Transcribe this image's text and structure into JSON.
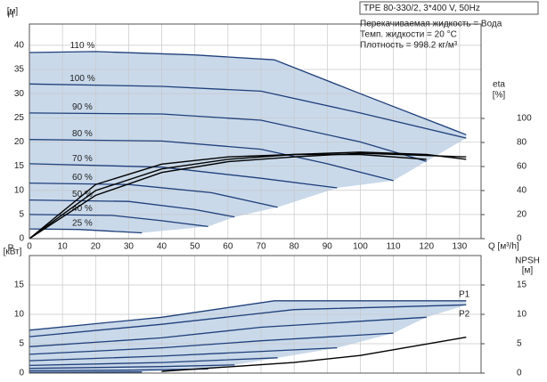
{
  "chart_data": [
    {
      "type": "line",
      "title": "TPE 80-330/2, 3*400 V, 50Hz",
      "info": [
        "Перекачиваемая жидкость = Вода",
        "Темп. жидкости = 20 °C",
        "Плотность = 998.2 кг/м³"
      ],
      "y_label": "H",
      "y_unit": "[м]",
      "y2_label": "eta",
      "y2_unit": "[%]",
      "x_label": "Q [м³/h]",
      "xlim": [
        0,
        136.5
      ],
      "xticks": [
        0,
        10,
        20,
        30,
        40,
        50,
        60,
        70,
        80,
        90,
        100,
        110,
        120,
        130
      ],
      "ylim": [
        0,
        44.4
      ],
      "yticks": [
        0,
        5,
        10,
        15,
        20,
        25,
        30,
        35,
        40
      ],
      "y2lim": [
        0,
        178.5
      ],
      "y2ticks": [
        0,
        20,
        40,
        60,
        80,
        100
      ],
      "grid": true,
      "area_color": "#c9d9ea",
      "series": [
        {
          "name": "110 %",
          "color": "#1f3f7a",
          "x": [
            0,
            20,
            50,
            74,
            100,
            132
          ],
          "values": [
            38.5,
            38.7,
            38,
            37,
            30,
            21.5
          ]
        },
        {
          "name": "100 %",
          "color": "#1f3f7a",
          "x": [
            0,
            40,
            70,
            100,
            132
          ],
          "values": [
            32,
            31.5,
            30.5,
            26,
            20.8
          ]
        },
        {
          "name": "90 %",
          "color": "#1f3f7a",
          "x": [
            0,
            40,
            70,
            100,
            120
          ],
          "values": [
            26,
            25.8,
            24.5,
            20,
            16
          ]
        },
        {
          "name": "80 %",
          "color": "#1f3f7a",
          "x": [
            0,
            40,
            70,
            90,
            110
          ],
          "values": [
            20.5,
            20.2,
            18.5,
            15.5,
            12
          ]
        },
        {
          "name": "70 %",
          "color": "#1f3f7a",
          "x": [
            0,
            40,
            70,
            93
          ],
          "values": [
            15.5,
            14.8,
            12.5,
            10.5
          ]
        },
        {
          "name": "60 %",
          "color": "#1f3f7a",
          "x": [
            0,
            30,
            55,
            75
          ],
          "values": [
            11.5,
            11.2,
            9.5,
            6.5
          ]
        },
        {
          "name": "50 %",
          "color": "#1f3f7a",
          "x": [
            0,
            30,
            50,
            62
          ],
          "values": [
            8,
            7.7,
            6,
            4.5
          ]
        },
        {
          "name": "40 %",
          "color": "#1f3f7a",
          "x": [
            0,
            25,
            40,
            54
          ],
          "values": [
            5,
            4.8,
            3.7,
            2.5
          ]
        },
        {
          "name": "25 %",
          "color": "#1f3f7a",
          "x": [
            0,
            15,
            34
          ],
          "values": [
            2,
            1.9,
            1.2
          ]
        },
        {
          "color": "#000000",
          "axis": "y2",
          "x": [
            0,
            20,
            40,
            60,
            80,
            100,
            132
          ],
          "values": [
            0,
            36,
            55,
            64,
            68,
            71,
            68
          ]
        },
        {
          "color": "#000000",
          "axis": "y2",
          "x": [
            0,
            20,
            40,
            60,
            80,
            100,
            120,
            132
          ],
          "values": [
            0,
            40,
            58,
            66,
            70,
            72,
            70,
            66
          ]
        },
        {
          "color": "#000000",
          "axis": "y2",
          "x": [
            0,
            20,
            40,
            60,
            80,
            100,
            120
          ],
          "values": [
            0,
            45,
            62,
            68,
            70,
            70,
            66
          ]
        }
      ]
    },
    {
      "type": "line",
      "y_label": "P",
      "y_unit": "[кВт]",
      "y2_label": "NPSH",
      "y2_unit": "[м]",
      "annotations": [
        "P1",
        "P2"
      ],
      "xlim": [
        0,
        136.5
      ],
      "xticks": [
        0,
        10,
        20,
        30,
        40,
        50,
        60,
        70,
        80,
        90,
        100,
        110,
        120,
        130
      ],
      "ylim": [
        0,
        20
      ],
      "yticks": [
        0,
        5,
        10,
        15
      ],
      "y2lim": [
        0,
        20
      ],
      "y2ticks": [
        0,
        5,
        10,
        15
      ],
      "grid": true,
      "area_color": "#c9d9ea",
      "series": [
        {
          "color": "#1f3f7a",
          "x": [
            0,
            40,
            74,
            132
          ],
          "values": [
            7.3,
            9.5,
            12.3,
            12.3
          ]
        },
        {
          "color": "#1f3f7a",
          "x": [
            0,
            40,
            80,
            132
          ],
          "values": [
            6.2,
            8.3,
            10.8,
            11.6
          ]
        },
        {
          "color": "#1f3f7a",
          "x": [
            0,
            40,
            70,
            120
          ],
          "values": [
            4.5,
            6,
            7.8,
            9.5
          ]
        },
        {
          "color": "#1f3f7a",
          "x": [
            0,
            40,
            70,
            110
          ],
          "values": [
            3.2,
            4.3,
            5.5,
            6.8
          ]
        },
        {
          "color": "#1f3f7a",
          "x": [
            0,
            40,
            93
          ],
          "values": [
            2.1,
            2.9,
            4.3
          ]
        },
        {
          "color": "#1f3f7a",
          "x": [
            0,
            40,
            75
          ],
          "values": [
            1.3,
            1.8,
            2.6
          ]
        },
        {
          "color": "#1f3f7a",
          "x": [
            0,
            40,
            62
          ],
          "values": [
            0.8,
            1.1,
            1.4
          ]
        },
        {
          "color": "#1f3f7a",
          "x": [
            0,
            30,
            54
          ],
          "values": [
            0.4,
            0.5,
            0.7
          ]
        },
        {
          "color": "#1f3f7a",
          "x": [
            0,
            34
          ],
          "values": [
            0.1,
            0.2
          ]
        },
        {
          "color": "#000000",
          "axis": "y2",
          "x": [
            40,
            80,
            100,
            132
          ],
          "values": [
            0.3,
            1.8,
            3,
            6.1
          ]
        }
      ]
    }
  ]
}
